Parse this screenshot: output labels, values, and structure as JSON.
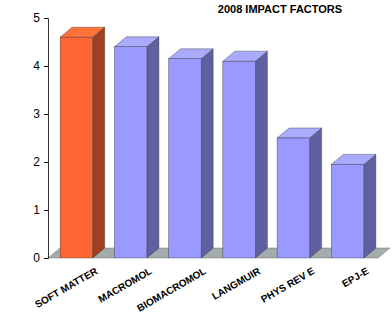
{
  "chart_data": {
    "type": "bar",
    "title": "2008 IMPACT FACTORS",
    "categories": [
      "SOFT MATTER",
      "MACROMOL",
      "BIOMACROMOL",
      "LANGMUIR",
      "PHYS REV E",
      "EPJ-E"
    ],
    "values": [
      4.6,
      4.4,
      4.15,
      4.1,
      2.5,
      1.95
    ],
    "colors": [
      "#ff6633",
      "#9999ff",
      "#9999ff",
      "#9999ff",
      "#9999ff",
      "#9999ff"
    ],
    "ylim": [
      0,
      5
    ],
    "yticks": [
      0,
      1,
      2,
      3,
      4,
      5
    ],
    "grid": false
  }
}
